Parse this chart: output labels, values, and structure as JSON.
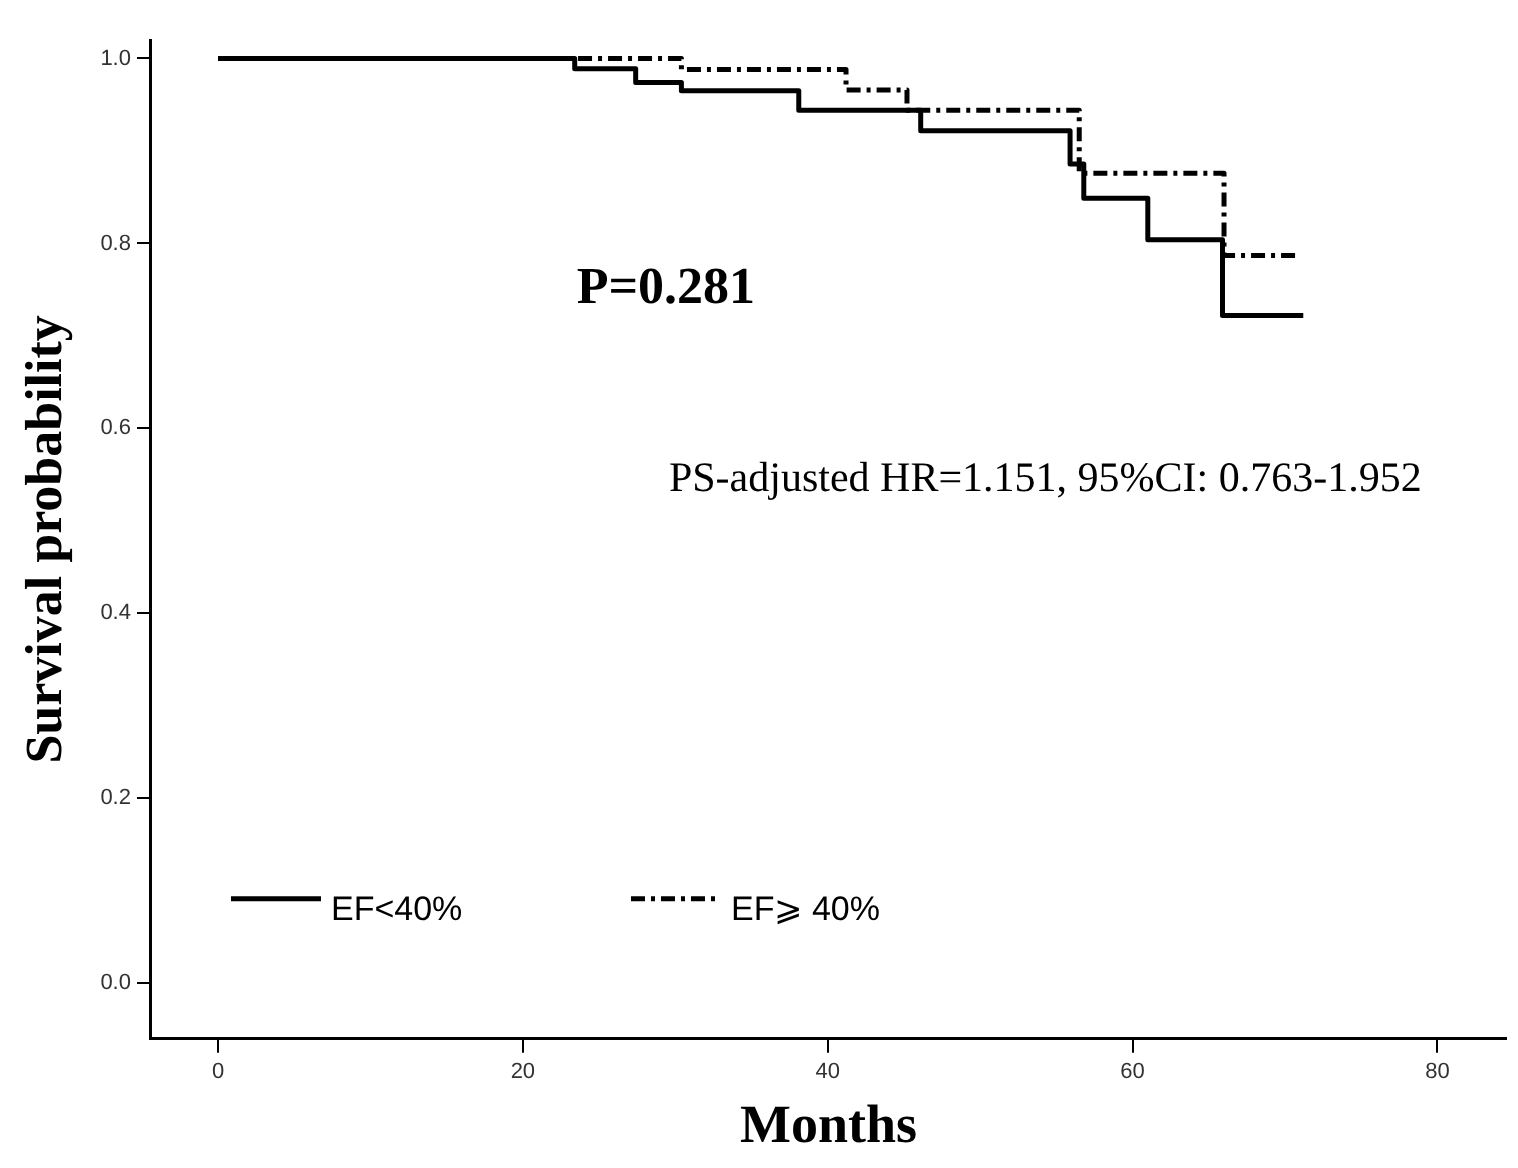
{
  "chart_data": {
    "type": "step",
    "xlabel": "Months",
    "ylabel": "Survival probability",
    "xlim": [
      -4.4,
      84.5
    ],
    "xticks": [
      0,
      20,
      40,
      60,
      80
    ],
    "ylim": [
      -0.06,
      1.02
    ],
    "yticks": [
      {
        "value": 0,
        "label": "0.0"
      },
      {
        "value": 0.2,
        "label": "0.2"
      },
      {
        "value": 0.4,
        "label": "0.4"
      },
      {
        "value": 0.6,
        "label": "0.6"
      },
      {
        "value": 0.8,
        "label": "0.8"
      },
      {
        "value": 1,
        "label": "1.0"
      }
    ],
    "grid": false,
    "legend": "bottom left",
    "marker": "none",
    "series": [
      {
        "name": "EF<40%",
        "color": "#000000",
        "line_style": "solid",
        "x": [
          0,
          23.4,
          27.4,
          30.4,
          38.1,
          46.1,
          55.9,
          56.8,
          61,
          65.9,
          71.2
        ],
        "values": [
          1,
          0.989,
          0.974,
          0.965,
          0.944,
          0.922,
          0.886,
          0.849,
          0.804,
          0.722,
          0.722
        ]
      },
      {
        "name": "EF⩾ 40%",
        "color": "#000000",
        "line_style": "dashed",
        "x": [
          0,
          30.4,
          41.2,
          45.2,
          56.5,
          66,
          71
        ],
        "values": [
          1,
          0.988,
          0.966,
          0.944,
          0.876,
          0.787,
          0.787
        ]
      }
    ],
    "annotations": [
      "P=0.281",
      "PS-adjusted HR=1.151, 95%CI: 0.763-1.952"
    ]
  }
}
